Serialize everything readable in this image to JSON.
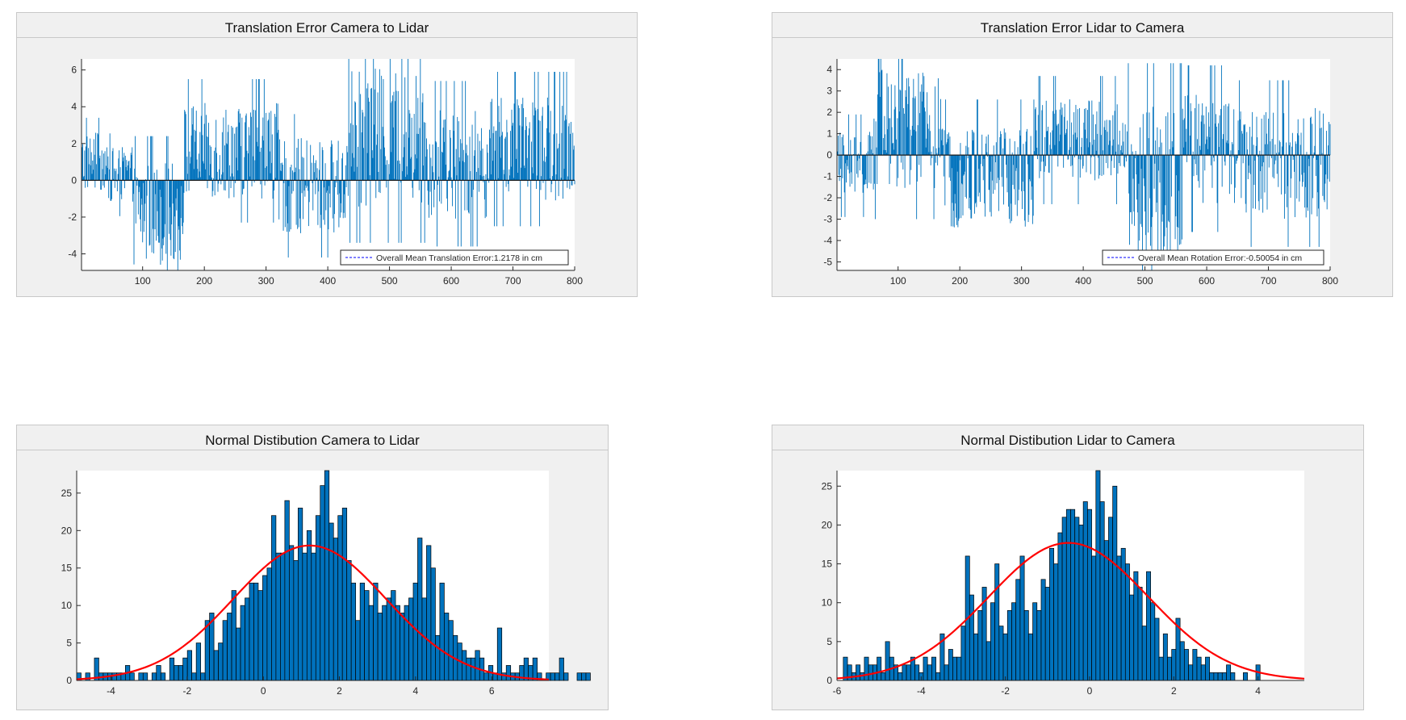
{
  "chart_data": [
    {
      "id": "p1",
      "type": "bar",
      "title": "Translation Error Camera to Lidar",
      "xlim": [
        1,
        800
      ],
      "ylim": [
        -4.9,
        6.6
      ],
      "xticks": [
        100,
        200,
        300,
        400,
        500,
        600,
        700,
        800
      ],
      "yticks": [
        -4,
        -2,
        0,
        2,
        4,
        6
      ],
      "bar_color": "#0072bd",
      "segments": [
        {
          "x": [
            1,
            40
          ],
          "mean": 1.0,
          "amp": 1.6
        },
        {
          "x": [
            40,
            85
          ],
          "mean": 0.3,
          "amp": 1.5
        },
        {
          "x": [
            85,
            165
          ],
          "mean": -1.8,
          "amp": 2.8
        },
        {
          "x": [
            165,
            320
          ],
          "mean": 1.6,
          "amp": 2.6
        },
        {
          "x": [
            320,
            430
          ],
          "mean": -0.3,
          "amp": 2.6
        },
        {
          "x": [
            430,
            560
          ],
          "mean": 2.3,
          "amp": 3.8
        },
        {
          "x": [
            560,
            660
          ],
          "mean": 0.9,
          "amp": 3.0
        },
        {
          "x": [
            660,
            800
          ],
          "mean": 1.7,
          "amp": 2.8
        }
      ],
      "legend": {
        "text": "Overall Mean Translation Error:1.2178 in cm",
        "position": "bottom-right",
        "color": "#0000ff"
      },
      "mean_line": 1.2178
    },
    {
      "id": "p2",
      "type": "bar",
      "title": "Translation Error Lidar to Camera",
      "xlim": [
        1,
        800
      ],
      "ylim": [
        -5.4,
        4.5
      ],
      "xticks": [
        100,
        200,
        300,
        400,
        500,
        600,
        700,
        800
      ],
      "yticks": [
        -5,
        -4,
        -3,
        -2,
        -1,
        0,
        1,
        2,
        3,
        4
      ],
      "bar_color": "#0072bd",
      "segments": [
        {
          "x": [
            1,
            60
          ],
          "mean": -0.5,
          "amp": 1.6
        },
        {
          "x": [
            60,
            170
          ],
          "mean": 1.2,
          "amp": 2.8
        },
        {
          "x": [
            170,
            320
          ],
          "mean": -1.0,
          "amp": 2.4
        },
        {
          "x": [
            320,
            470
          ],
          "mean": 0.7,
          "amp": 2.0
        },
        {
          "x": [
            470,
            560
          ],
          "mean": -1.4,
          "amp": 3.8
        },
        {
          "x": [
            560,
            650
          ],
          "mean": 0.3,
          "amp": 2.6
        },
        {
          "x": [
            650,
            800
          ],
          "mean": -0.4,
          "amp": 2.6
        }
      ],
      "legend": {
        "text": "Overall Mean Rotation Error:-0.50054 in cm",
        "position": "bottom-right",
        "color": "#0000ff"
      },
      "mean_line": -0.50054
    },
    {
      "id": "p3",
      "type": "histogram",
      "title": "Normal Distibution Camera to Lidar",
      "xlim": [
        -4.9,
        7.5
      ],
      "ylim": [
        0,
        28
      ],
      "xticks": [
        -4,
        -2,
        0,
        2,
        4,
        6
      ],
      "yticks": [
        0,
        5,
        10,
        15,
        20,
        25
      ],
      "bar_color": "#0072bd",
      "bin_start": -4.9,
      "bin_width": 0.1163,
      "counts": [
        1,
        0,
        1,
        0,
        3,
        1,
        1,
        1,
        1,
        1,
        1,
        2,
        1,
        0,
        1,
        1,
        0,
        1,
        2,
        1,
        0,
        3,
        2,
        2,
        3,
        4,
        1,
        5,
        1,
        8,
        9,
        4,
        5,
        8,
        9,
        12,
        7,
        10,
        11,
        13,
        13,
        12,
        14,
        15,
        22,
        17,
        17,
        24,
        18,
        16,
        23,
        17,
        20,
        17,
        22,
        26,
        28,
        21,
        19,
        22,
        23,
        16,
        13,
        8,
        13,
        12,
        10,
        13,
        9,
        10,
        11,
        12,
        10,
        9,
        10,
        11,
        13,
        19,
        11,
        18,
        15,
        6,
        13,
        9,
        8,
        6,
        5,
        4,
        3,
        3,
        4,
        3,
        1,
        2,
        1,
        7,
        1,
        2,
        1,
        1,
        2,
        3,
        2,
        3,
        1,
        0,
        1,
        1,
        1,
        3,
        1,
        0,
        0,
        1,
        1,
        1
      ],
      "fit": {
        "mu": 1.2178,
        "sigma": 2.0,
        "peak": 18,
        "color": "#ff0000"
      }
    },
    {
      "id": "p4",
      "type": "histogram",
      "title": "Normal Distibution Lidar to Camera",
      "xlim": [
        -6.0,
        5.1
      ],
      "ylim": [
        0,
        27
      ],
      "xticks": [
        -6,
        -4,
        -2,
        0,
        2,
        4
      ],
      "yticks": [
        0,
        5,
        10,
        15,
        20,
        25
      ],
      "bar_color": "#0072bd",
      "bin_start": -5.85,
      "bin_width": 0.1,
      "counts": [
        3,
        2,
        1,
        2,
        1,
        3,
        2,
        2,
        3,
        1,
        5,
        3,
        2,
        1,
        2,
        2,
        3,
        2,
        1,
        3,
        2,
        3,
        1,
        6,
        2,
        4,
        3,
        3,
        7,
        16,
        11,
        6,
        9,
        12,
        5,
        10,
        15,
        7,
        6,
        9,
        10,
        13,
        16,
        9,
        6,
        10,
        9,
        13,
        12,
        17,
        15,
        19,
        21,
        22,
        22,
        21,
        20,
        23,
        22,
        16,
        27,
        23,
        18,
        21,
        25,
        16,
        17,
        15,
        11,
        14,
        12,
        7,
        14,
        10,
        8,
        3,
        6,
        3,
        4,
        8,
        5,
        4,
        2,
        4,
        3,
        2,
        3,
        1,
        1,
        1,
        1,
        2,
        1,
        0,
        0,
        1,
        0,
        0,
        2,
        0,
        0
      ],
      "fit": {
        "mu": -0.50054,
        "sigma": 1.9,
        "peak": 17.7,
        "color": "#ff0000"
      }
    }
  ]
}
